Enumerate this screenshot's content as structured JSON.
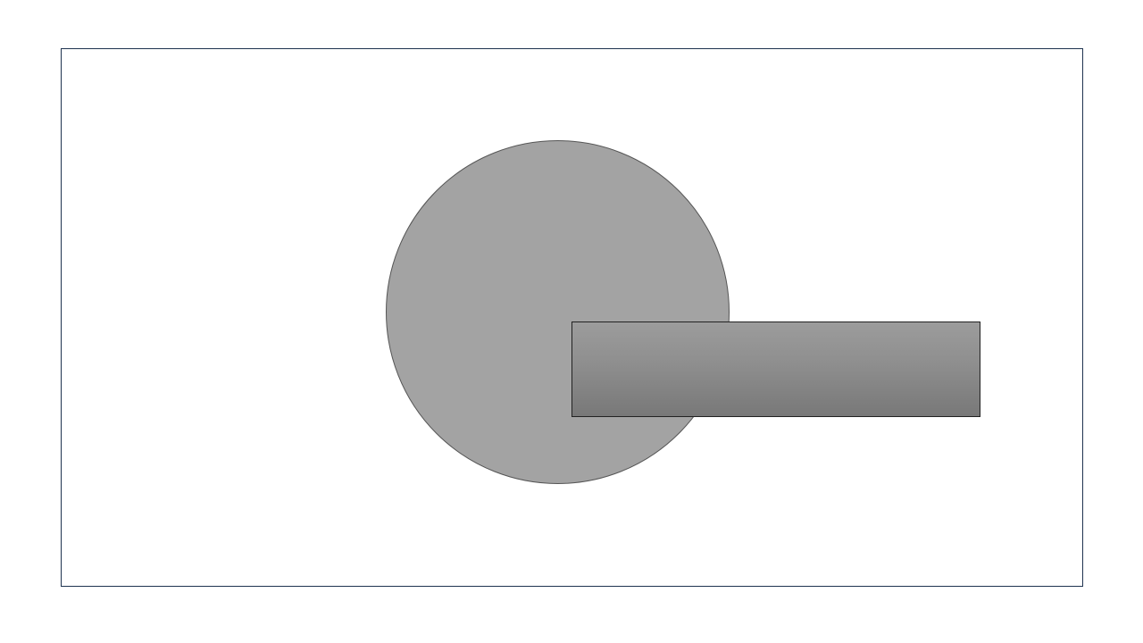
{
  "canvas": {
    "background_color": "#ffffff",
    "frame_border_color": "#1f3350"
  },
  "shapes": [
    {
      "kind": "circle",
      "fill_color": "#a3a3a3",
      "stroke_color": "#555555"
    },
    {
      "kind": "rectangle",
      "fill": "vertical-gradient",
      "gradient_top_color": "#9c9c9c",
      "gradient_bottom_color": "#787878",
      "stroke_color": "#222222"
    }
  ]
}
